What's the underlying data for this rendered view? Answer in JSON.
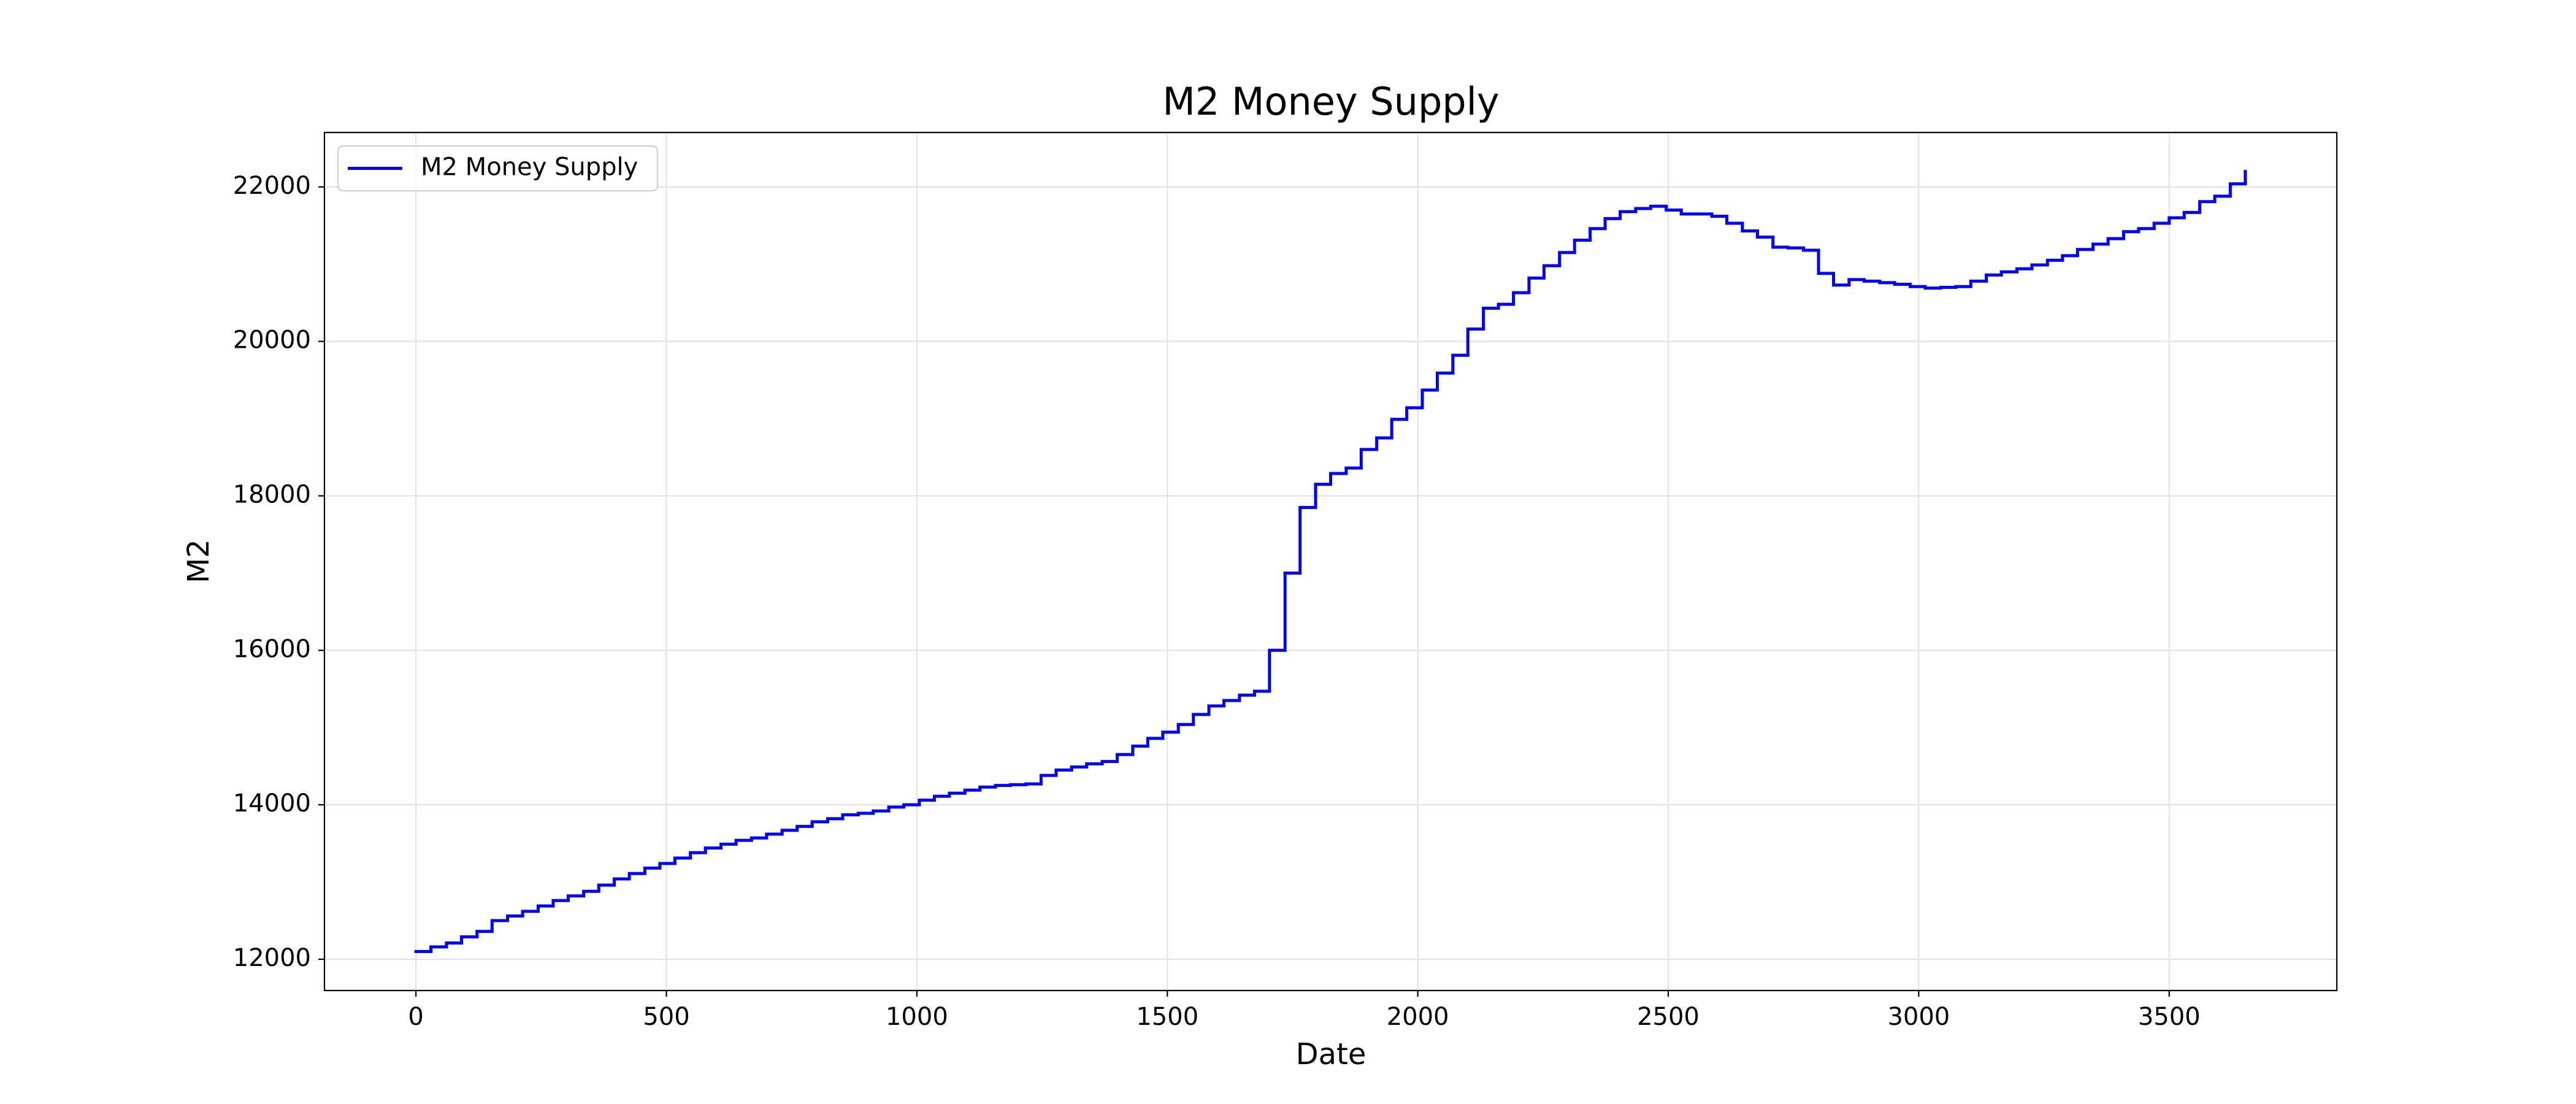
{
  "chart_data": {
    "type": "line",
    "title": "M2 Money Supply",
    "xlabel": "Date",
    "ylabel": "M2",
    "drawstyle": "steps-post",
    "grid": true,
    "legend": "upper left",
    "xlim": [
      -182.6,
      3834.6
    ],
    "ylim": [
      11595,
      22705
    ],
    "xticks": [
      0,
      500,
      1000,
      1500,
      2000,
      2500,
      3000,
      3500
    ],
    "yticks": [
      12000,
      14000,
      16000,
      18000,
      20000,
      22000
    ],
    "x": [
      0,
      30,
      61,
      91,
      122,
      152,
      183,
      213,
      244,
      274,
      304,
      335,
      365,
      396,
      426,
      457,
      487,
      517,
      548,
      578,
      609,
      639,
      670,
      700,
      731,
      761,
      791,
      822,
      852,
      883,
      913,
      944,
      974,
      1005,
      1035,
      1065,
      1096,
      1126,
      1157,
      1187,
      1218,
      1248,
      1278,
      1309,
      1339,
      1370,
      1400,
      1431,
      1461,
      1491,
      1522,
      1552,
      1583,
      1613,
      1644,
      1674,
      1704,
      1735,
      1765,
      1796,
      1826,
      1857,
      1887,
      1918,
      1948,
      1978,
      2009,
      2039,
      2070,
      2100,
      2131,
      2161,
      2191,
      2222,
      2252,
      2283,
      2313,
      2344,
      2374,
      2404,
      2435,
      2465,
      2496,
      2526,
      2557,
      2587,
      2617,
      2648,
      2678,
      2709,
      2739,
      2770,
      2800,
      2830,
      2861,
      2891,
      2922,
      2952,
      2983,
      3013,
      3044,
      3074,
      3104,
      3135,
      3165,
      3196,
      3226,
      3257,
      3287,
      3317,
      3348,
      3378,
      3409,
      3439,
      3470,
      3500,
      3530,
      3561,
      3591,
      3622,
      3652
    ],
    "series": [
      {
        "name": "M2 Money Supply",
        "color": "#0000ff",
        "values": [
          12100,
          12160,
          12210,
          12290,
          12360,
          12500,
          12560,
          12620,
          12690,
          12760,
          12820,
          12880,
          12960,
          13040,
          13110,
          13180,
          13240,
          13310,
          13380,
          13440,
          13490,
          13540,
          13570,
          13620,
          13670,
          13720,
          13780,
          13820,
          13870,
          13890,
          13920,
          13970,
          14000,
          14060,
          14110,
          14150,
          14190,
          14230,
          14250,
          14260,
          14270,
          14380,
          14450,
          14490,
          14530,
          14560,
          14650,
          14760,
          14860,
          14940,
          15040,
          15170,
          15280,
          15350,
          15420,
          15470,
          16000,
          17000,
          17850,
          18150,
          18290,
          18360,
          18600,
          18750,
          18990,
          19140,
          19370,
          19590,
          19820,
          20160,
          20430,
          20480,
          20630,
          20820,
          20980,
          21150,
          21310,
          21460,
          21590,
          21680,
          21720,
          21750,
          21700,
          21650,
          21650,
          21620,
          21530,
          21430,
          21350,
          21220,
          21210,
          21180,
          20880,
          20730,
          20800,
          20780,
          20760,
          20740,
          20710,
          20690,
          20700,
          20710,
          20780,
          20860,
          20900,
          20940,
          20990,
          21050,
          21110,
          21190,
          21260,
          21330,
          21420,
          21460,
          21530,
          21600,
          21670,
          21810,
          21880,
          22040,
          22200
        ]
      }
    ]
  }
}
